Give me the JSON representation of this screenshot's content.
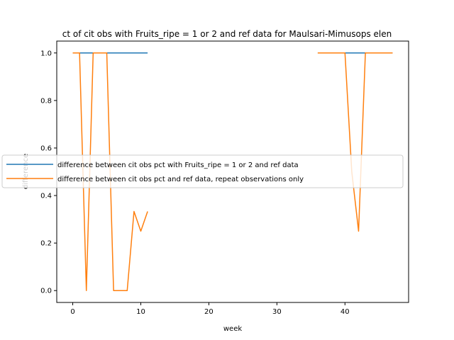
{
  "chart_data": {
    "type": "line",
    "title": "ct of cit obs with Fruits_ripe = 1 or 2 and ref data for Maulsari-Mimusops elen",
    "xlabel": "week",
    "ylabel": "difference",
    "xlim": [
      -2.35,
      49.35
    ],
    "ylim": [
      -0.05,
      1.05
    ],
    "xticks": [
      0,
      10,
      20,
      30,
      40
    ],
    "yticks": [
      0.0,
      0.2,
      0.4,
      0.6,
      0.8,
      1.0
    ],
    "xtick_labels": [
      "0",
      "10",
      "20",
      "30",
      "40"
    ],
    "ytick_labels": [
      "0.0",
      "0.2",
      "0.4",
      "0.6",
      "0.8",
      "1.0"
    ],
    "grid": false,
    "legend_position": "center-left",
    "series": [
      {
        "name": "difference between cit obs pct with Fruits_ripe = 1 or 2 and ref data",
        "color": "#1f77b4",
        "segments": [
          {
            "x": [
              0,
              1,
              2,
              3,
              4,
              5,
              6,
              7,
              8,
              9,
              10,
              11
            ],
            "y": [
              1,
              1,
              1,
              1,
              1,
              1,
              1,
              1,
              1,
              1,
              1,
              1
            ]
          },
          {
            "x": [
              36,
              37,
              38,
              39,
              40,
              41,
              42,
              43,
              44,
              45,
              46,
              47
            ],
            "y": [
              1,
              1,
              1,
              1,
              1,
              1,
              1,
              1,
              1,
              1,
              1,
              1
            ]
          }
        ]
      },
      {
        "name": "difference between cit obs pct and ref data, repeat observations only",
        "color": "#ff7f0e",
        "segments": [
          {
            "x": [
              0,
              1,
              2,
              3,
              4,
              5,
              6,
              7,
              8,
              9,
              10,
              11
            ],
            "y": [
              1,
              1,
              0,
              1,
              1,
              1,
              0,
              0,
              0,
              0.333,
              0.25,
              0.333
            ]
          },
          {
            "x": [
              36,
              37,
              38,
              39,
              40,
              41,
              42,
              43,
              44,
              45,
              46,
              47
            ],
            "y": [
              1,
              1,
              1,
              1,
              1,
              0.5,
              0.25,
              1,
              1,
              1,
              1,
              1
            ]
          }
        ]
      }
    ]
  }
}
